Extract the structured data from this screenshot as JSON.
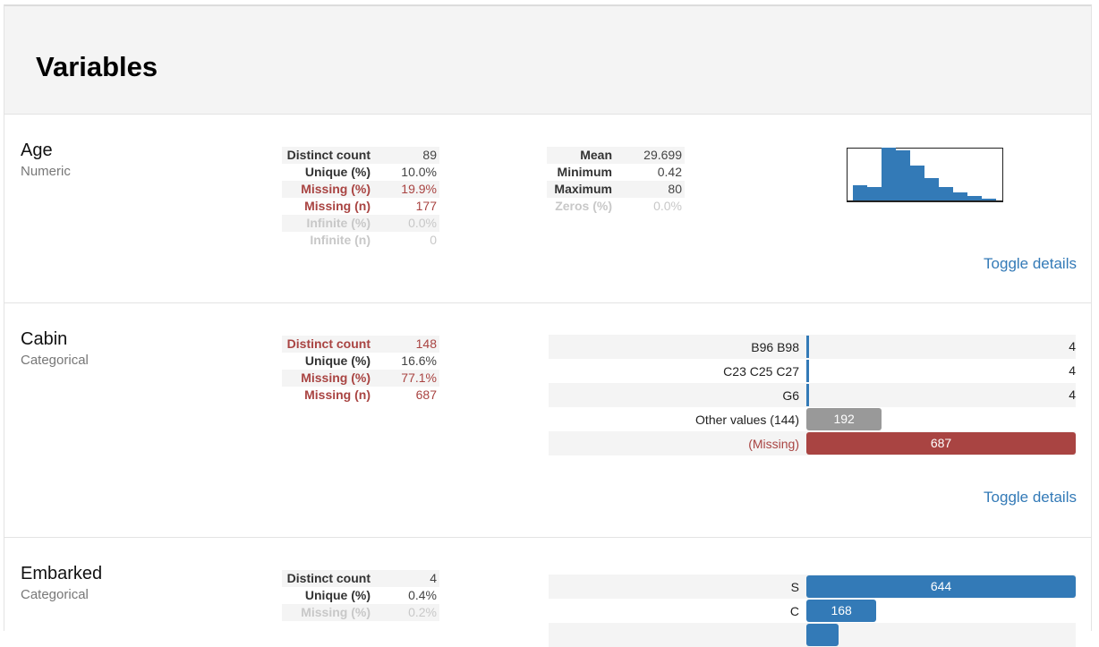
{
  "section": {
    "title": "Variables"
  },
  "colors": {
    "accent": "#337ab7",
    "alert": "#a94442",
    "other": "#999999",
    "muted": "#c8c8c8"
  },
  "variables": [
    {
      "name": "Age",
      "type": "Numeric",
      "stats_left": [
        {
          "label": "Distinct count",
          "value": "89",
          "style": "normal"
        },
        {
          "label": "Unique (%)",
          "value": "10.0%",
          "style": "normal"
        },
        {
          "label": "Missing (%)",
          "value": "19.9%",
          "style": "alert"
        },
        {
          "label": "Missing (n)",
          "value": "177",
          "style": "alert"
        },
        {
          "label": "Infinite (%)",
          "value": "0.0%",
          "style": "ignore"
        },
        {
          "label": "Infinite (n)",
          "value": "0",
          "style": "ignore"
        }
      ],
      "stats_right": [
        {
          "label": "Mean",
          "value": "29.699",
          "style": "normal"
        },
        {
          "label": "Minimum",
          "value": "0.42",
          "style": "normal"
        },
        {
          "label": "Maximum",
          "value": "80",
          "style": "normal"
        },
        {
          "label": "Zeros (%)",
          "value": "0.0%",
          "style": "ignore"
        }
      ],
      "histogram": {
        "relative_heights": [
          17,
          15,
          59,
          56,
          39,
          25,
          15,
          9,
          5,
          2
        ]
      },
      "toggle_label": "Toggle details"
    },
    {
      "name": "Cabin",
      "type": "Categorical",
      "stats_left": [
        {
          "label": "Distinct count",
          "value": "148",
          "style": "alert"
        },
        {
          "label": "Unique (%)",
          "value": "16.6%",
          "style": "normal"
        },
        {
          "label": "Missing (%)",
          "value": "77.1%",
          "style": "alert"
        },
        {
          "label": "Missing (n)",
          "value": "687",
          "style": "alert"
        }
      ],
      "frequencies": [
        {
          "label": "B96 B98",
          "count": "4",
          "kind": "thin"
        },
        {
          "label": "C23 C25 C27",
          "count": "4",
          "kind": "thin"
        },
        {
          "label": "G6",
          "count": "4",
          "kind": "thin"
        },
        {
          "label": "Other values (144)",
          "count": "192",
          "kind": "other",
          "width_pct": 28
        },
        {
          "label": "(Missing)",
          "count": "687",
          "kind": "missing",
          "width_pct": 100
        }
      ],
      "toggle_label": "Toggle details"
    },
    {
      "name": "Embarked",
      "type": "Categorical",
      "stats_left": [
        {
          "label": "Distinct count",
          "value": "4",
          "style": "normal"
        },
        {
          "label": "Unique (%)",
          "value": "0.4%",
          "style": "normal"
        },
        {
          "label": "Missing (%)",
          "value": "0.2%",
          "style": "ignore"
        }
      ],
      "frequencies": [
        {
          "label": "S",
          "count": "644",
          "kind": "bar",
          "width_pct": 100
        },
        {
          "label": "C",
          "count": "168",
          "kind": "bar",
          "width_pct": 26
        },
        {
          "label": "",
          "count": "",
          "kind": "bar",
          "width_pct": 12
        }
      ]
    }
  ]
}
